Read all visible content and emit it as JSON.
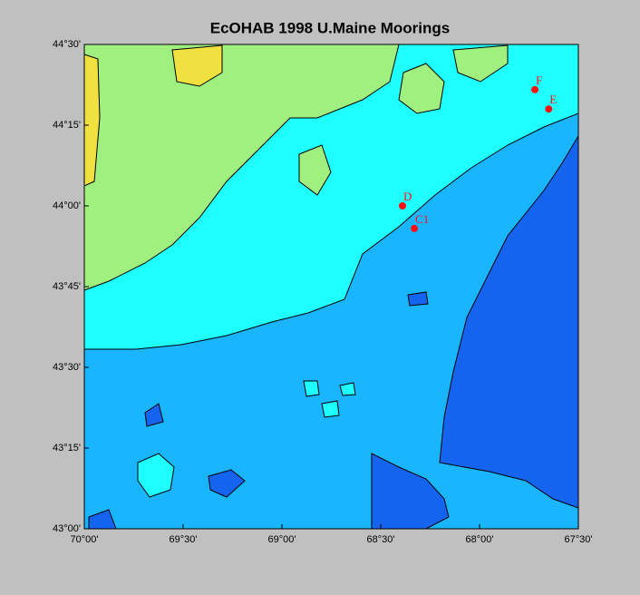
{
  "map": {
    "title": "EcOHAB 1998 U.Maine Moorings",
    "xlim": [
      -70,
      -67.5
    ],
    "ylim": [
      43,
      44.5
    ],
    "xticks": [
      {
        "value": -70,
        "label": "70°00'"
      },
      {
        "value": -69.5,
        "label": "69°30'"
      },
      {
        "value": -69,
        "label": "69°00'"
      },
      {
        "value": -68.5,
        "label": "68°30'"
      },
      {
        "value": -68,
        "label": "68°00'"
      },
      {
        "value": -67.5,
        "label": "67°30'"
      }
    ],
    "yticks": [
      {
        "value": 43,
        "label": "43°00'"
      },
      {
        "value": 43.25,
        "label": "43°15'"
      },
      {
        "value": 43.5,
        "label": "43°30'"
      },
      {
        "value": 43.75,
        "label": "43°45'"
      },
      {
        "value": 44,
        "label": "44°00'"
      },
      {
        "value": 44.25,
        "label": "44°15'"
      },
      {
        "value": 44.5,
        "label": "44°30'"
      }
    ],
    "mooring_color": "#ff1010",
    "moorings": [
      {
        "name": "F",
        "lon": -67.72,
        "lat": 44.36
      },
      {
        "name": "E",
        "lon": -67.65,
        "lat": 44.3
      },
      {
        "name": "D",
        "lon": -68.39,
        "lat": 44.0
      },
      {
        "name": "C1",
        "lon": -68.33,
        "lat": 43.93
      }
    ]
  }
}
